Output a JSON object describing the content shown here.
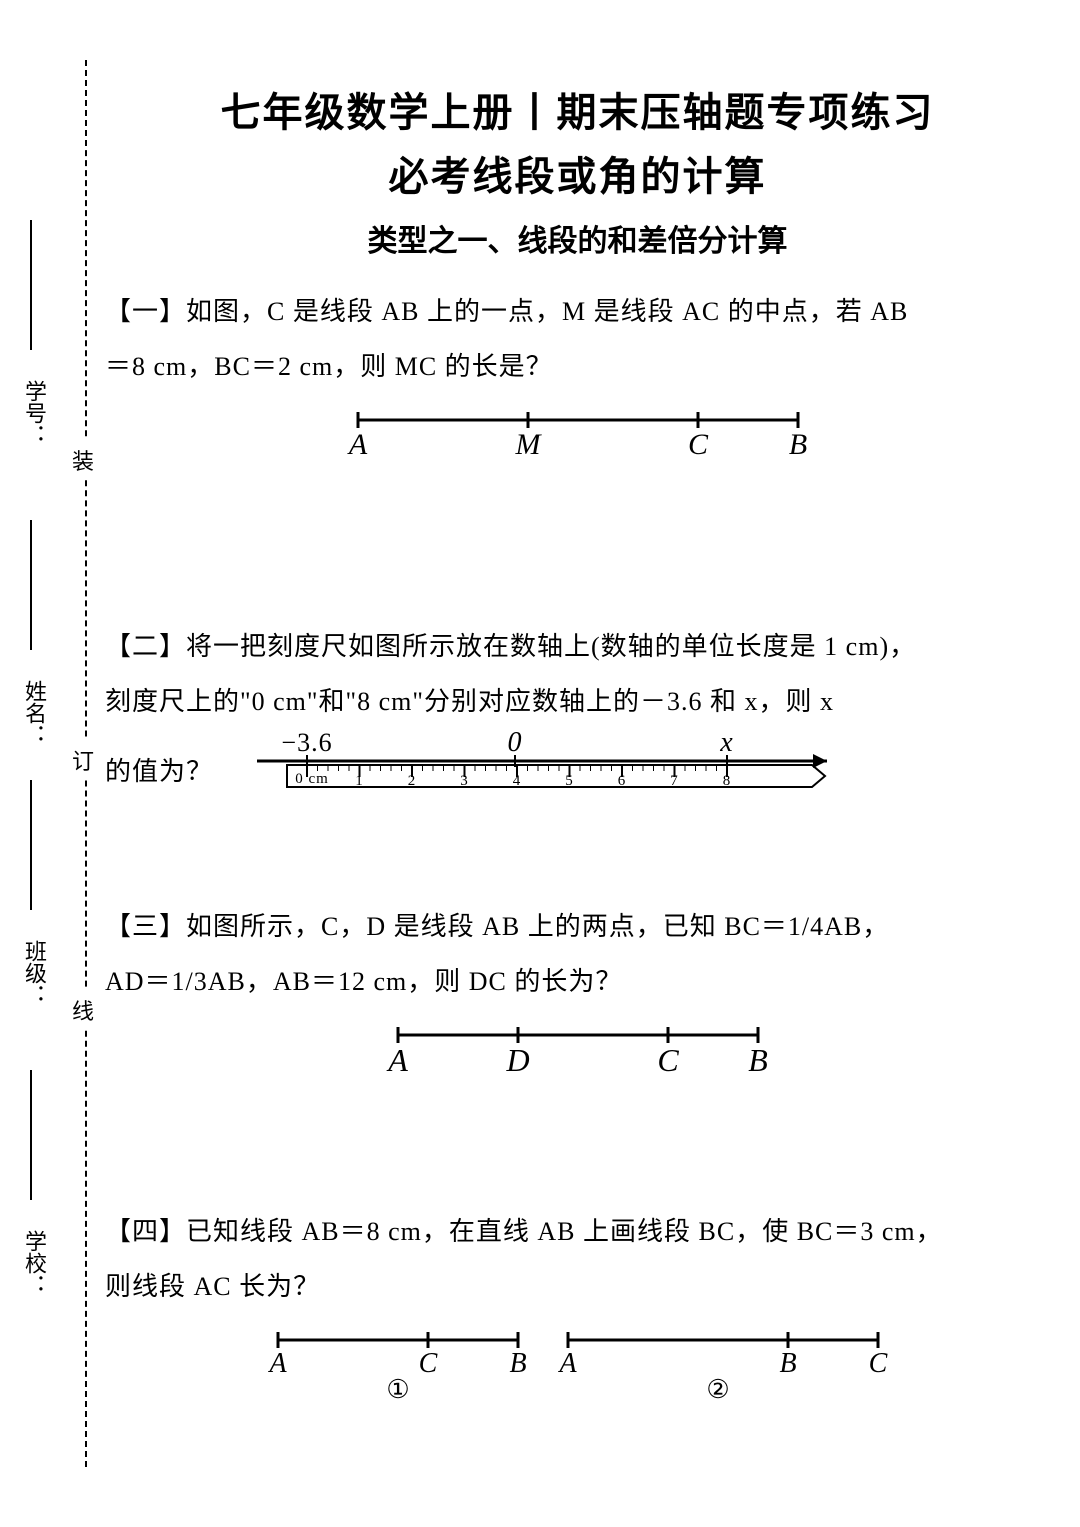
{
  "binding": {
    "label_school": "学校：",
    "label_class": "班级：",
    "label_name": "姓名：",
    "label_id": "学号：",
    "char_top": "装",
    "char_mid": "订",
    "char_bot": "线"
  },
  "titles": {
    "main": "七年级数学上册丨期末压轴题专项练习",
    "sub": "必考线段或角的计算",
    "section": "类型之一、线段的和差倍分计算"
  },
  "problems": {
    "p1": {
      "label": "【一】",
      "text1": "如图，C 是线段 AB 上的一点，M 是线段 AC 的中点，若 AB",
      "text2": "＝8 cm，BC＝2 cm，则 MC 的长是？",
      "fig": {
        "A": "A",
        "M": "M",
        "C": "C",
        "B": "B"
      }
    },
    "p2": {
      "label": "【二】",
      "text1": "将一把刻度尺如图所示放在数轴上(数轴的单位长度是 1 cm)，",
      "text2": "刻度尺上的\"0 cm\"和\"8 cm\"分别对应数轴上的－3.6 和 x，则 x",
      "text3": "的值为？",
      "fig": {
        "neg": "−3.6",
        "zero": "0",
        "x": "x",
        "zerocm": "0 cm",
        "ticks": [
          "1",
          "2",
          "3",
          "4",
          "5",
          "6",
          "7",
          "8"
        ]
      }
    },
    "p3": {
      "label": "【三】",
      "text1": "如图所示，C，D 是线段 AB 上的两点，已知 BC＝1/4AB，",
      "text2": "AD＝1/3AB，AB＝12 cm，则 DC 的长为？",
      "fig": {
        "A": "A",
        "D": "D",
        "C": "C",
        "B": "B"
      }
    },
    "p4": {
      "label": "【四】",
      "text1": "已知线段 AB＝8 cm，在直线 AB 上画线段 BC，使 BC＝3 cm，",
      "text2": "则线段 AC 长为？",
      "fig": {
        "A": "A",
        "C": "C",
        "B": "B",
        "one": "①",
        "two": "②"
      }
    }
  }
}
